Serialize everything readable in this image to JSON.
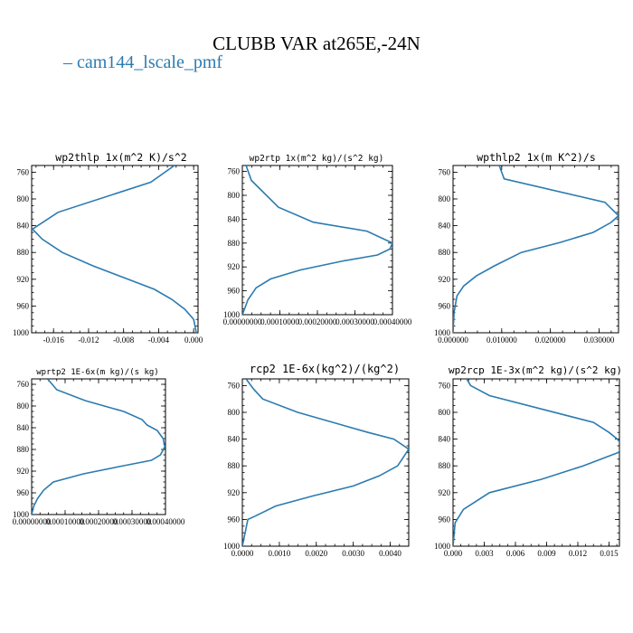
{
  "page_title": "CLUBB VAR at265E,-24N",
  "legend": {
    "label": "cam144_lscale_pmf",
    "color": "#2b7bb0"
  },
  "chart_data": [
    {
      "type": "line",
      "title": "wp2thlp  1x(m^2 K)/s^2",
      "ylim": [
        1000,
        750
      ],
      "yticks": [
        760,
        800,
        840,
        880,
        920,
        960,
        1000
      ],
      "ytick_labels": [
        "760",
        "800",
        "840",
        "880",
        "920",
        "960",
        "1000"
      ],
      "xlim": [
        -0.0185,
        0.0005
      ],
      "xticks": [
        -0.016,
        -0.012,
        -0.008,
        -0.004,
        0.0
      ],
      "xtick_labels": [
        "-0.016",
        "-0.012",
        "-0.008",
        "-0.004",
        "0.000"
      ],
      "series": [
        {
          "x": [
            -0.0022,
            -0.0049,
            -0.0155,
            -0.0184,
            -0.0173,
            -0.015,
            -0.0115,
            -0.0075,
            -0.0045,
            -0.0025,
            -0.001,
            0.0,
            0.0003
          ],
          "y": [
            750,
            775,
            820,
            845,
            860,
            880,
            900,
            920,
            935,
            950,
            965,
            980,
            1000
          ],
          "color": "#2b7bb0"
        }
      ]
    },
    {
      "type": "line",
      "title": "wp2rtp  1x(m^2 kg)/(s^2 kg)",
      "ylim": [
        1000,
        750
      ],
      "yticks": [
        760,
        800,
        840,
        880,
        920,
        960,
        1000
      ],
      "ytick_labels": [
        "760",
        "800",
        "840",
        "880",
        "920",
        "960",
        "1000"
      ],
      "xlim": [
        0.0,
        0.0004
      ],
      "xticks": [
        0.0,
        0.0001,
        0.0002,
        0.0003,
        0.0004
      ],
      "xtick_labels": [
        "0.00000000",
        "0.00010000",
        "0.00020000",
        "0.00030000",
        "0.00040000"
      ],
      "series": [
        {
          "x": [
            1e-05,
            2.42e-05,
            9.65e-05,
            0.000189,
            0.000332,
            0.0004,
            0.000393,
            0.00036,
            0.000268,
            0.000155,
            7.56e-05,
            3.66e-05,
            1.5e-05,
            0.0
          ],
          "y": [
            750,
            775,
            820,
            845,
            860,
            880,
            890,
            900,
            910,
            925,
            940,
            955,
            975,
            1000
          ],
          "color": "#2b7bb0"
        }
      ]
    },
    {
      "type": "line",
      "title": "wpthlp2  1x(m K^2)/s",
      "ylim": [
        1000,
        750
      ],
      "yticks": [
        760,
        800,
        840,
        880,
        920,
        960,
        1000
      ],
      "ytick_labels": [
        "760",
        "800",
        "840",
        "880",
        "920",
        "960",
        "1000"
      ],
      "xlim": [
        0.0,
        0.034
      ],
      "xticks": [
        0.0,
        0.01,
        0.02,
        0.03
      ],
      "xtick_labels": [
        "0.000000",
        "0.010000",
        "0.020000",
        "0.030000"
      ],
      "series": [
        {
          "x": [
            0.0095,
            0.0105,
            0.0312,
            0.034,
            0.0325,
            0.0288,
            0.022,
            0.014,
            0.0085,
            0.0048,
            0.0022,
            0.0008,
            0.0002,
            0.0
          ],
          "y": [
            750,
            770,
            805,
            825,
            835,
            850,
            865,
            880,
            900,
            915,
            930,
            945,
            970,
            1000
          ],
          "color": "#2b7bb0"
        }
      ]
    },
    {
      "type": "line",
      "title": "wprtp2  1E-6x(m kg)/(s kg)",
      "ylim": [
        1000,
        750
      ],
      "yticks": [
        760,
        800,
        840,
        880,
        920,
        960,
        1000
      ],
      "ytick_labels": [
        "760",
        "800",
        "840",
        "880",
        "920",
        "960",
        "1000"
      ],
      "xlim": [
        0.0,
        0.0004
      ],
      "xticks": [
        0.0,
        0.0001,
        0.0002,
        0.0003,
        0.0004
      ],
      "xtick_labels": [
        "0.00000000",
        "0.00010000",
        "0.00020000",
        "0.00030000",
        "0.00040000"
      ],
      "series": [
        {
          "x": [
            4.75e-05,
            7.5e-05,
            0.00016,
            0.000275,
            0.00033,
            0.000345,
            0.000375,
            0.000393,
            0.000398,
            0.000385,
            0.000358,
            0.000275,
            0.000155,
            6.5e-05,
            3.6e-05,
            1.8e-05,
            6e-06,
            0.0
          ],
          "y": [
            750,
            770,
            790,
            810,
            825,
            835,
            845,
            860,
            875,
            890,
            900,
            910,
            925,
            940,
            955,
            970,
            985,
            1000
          ],
          "color": "#2b7bb0"
        }
      ]
    },
    {
      "type": "line",
      "title": "rcp2  1E-6x(kg^2)/(kg^2)",
      "ylim": [
        1000,
        750
      ],
      "yticks": [
        760,
        800,
        840,
        880,
        920,
        960,
        1000
      ],
      "ytick_labels": [
        "760",
        "800",
        "840",
        "880",
        "920",
        "960",
        "1000"
      ],
      "xlim": [
        0.0,
        0.0045
      ],
      "xticks": [
        0.0,
        0.001,
        0.002,
        0.003,
        0.004
      ],
      "xtick_labels": [
        "0.0000",
        "0.0010",
        "0.0020",
        "0.0030",
        "0.0040"
      ],
      "series": [
        {
          "x": [
            0.0001,
            0.0003,
            0.00055,
            0.0015,
            0.0034,
            0.0041,
            0.0045,
            0.0042,
            0.0037,
            0.003,
            0.0019,
            0.0009,
            0.00035,
            0.00015,
            0.0
          ],
          "y": [
            750,
            765,
            780,
            800,
            830,
            840,
            855,
            880,
            895,
            910,
            925,
            940,
            955,
            960,
            1000
          ],
          "color": "#2b7bb0"
        }
      ]
    },
    {
      "type": "line",
      "title": "wp2rcp  1E-3x(m^2 kg)/(s^2 kg)",
      "ylim": [
        1000,
        750
      ],
      "yticks": [
        760,
        800,
        840,
        880,
        920,
        960,
        1000
      ],
      "ytick_labels": [
        "760",
        "800",
        "840",
        "880",
        "920",
        "960",
        "1000"
      ],
      "xlim": [
        0.0,
        0.016
      ],
      "xticks": [
        0.0,
        0.003,
        0.006,
        0.009,
        0.012,
        0.015
      ],
      "xtick_labels": [
        "0.000",
        "0.003",
        "0.006",
        "0.009",
        "0.012",
        "0.015"
      ],
      "series": [
        {
          "x": [
            0.0013,
            0.0017,
            0.0035,
            0.0135,
            0.015,
            0.0158,
            0.0163,
            0.0159,
            0.0125,
            0.0085,
            0.0035,
            0.001,
            0.0002,
            0.0
          ],
          "y": [
            750,
            760,
            775,
            815,
            830,
            840,
            850,
            860,
            880,
            900,
            920,
            945,
            965,
            1000
          ],
          "color": "#2b7bb0"
        }
      ]
    }
  ]
}
